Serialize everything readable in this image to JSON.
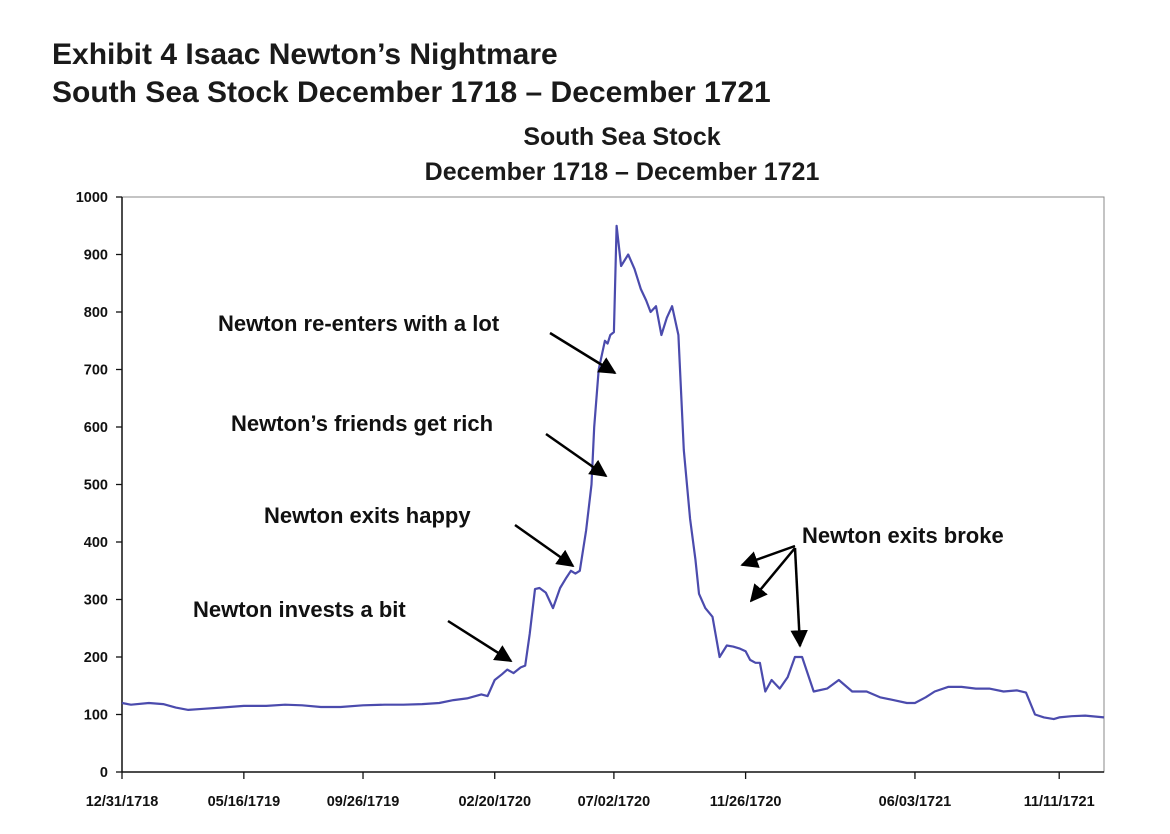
{
  "exhibit": {
    "title_line1": "Exhibit 4  Isaac Newton’s Nightmare",
    "title_line2": "South Sea Stock December 1718 – December 1721"
  },
  "chart_data": {
    "type": "line",
    "title_line1": "South Sea Stock",
    "title_line2": "December 1718 – December 1721",
    "xlabel": "",
    "ylabel": "",
    "ylim": [
      0,
      1000
    ],
    "yticks": [
      0,
      100,
      200,
      300,
      400,
      500,
      600,
      700,
      800,
      900,
      1000
    ],
    "xlim": [
      "1718-12-31",
      "1721-12-31"
    ],
    "xtick_labels": [
      "12/31/1718",
      "05/16/1719",
      "09/26/1719",
      "02/20/1720",
      "07/02/1720",
      "11/26/1720",
      "06/03/1721",
      "11/11/1721"
    ],
    "xtick_dates": [
      "1718-12-31",
      "1719-05-16",
      "1719-09-26",
      "1720-02-20",
      "1720-07-02",
      "1720-11-26",
      "1721-06-03",
      "1721-11-11"
    ],
    "grid": false,
    "legend": "none",
    "line_color": "#4b4bad",
    "series": [
      {
        "x": [
          "1718-12-31",
          "1719-01-10",
          "1719-01-30",
          "1719-02-15",
          "1719-03-01",
          "1719-03-15",
          "1719-04-01",
          "1719-04-20",
          "1719-05-16",
          "1719-06-10",
          "1719-07-01",
          "1719-07-20",
          "1719-08-10",
          "1719-09-01",
          "1719-09-26",
          "1719-10-20",
          "1719-11-10",
          "1719-12-01",
          "1719-12-20",
          "1720-01-05",
          "1720-01-20",
          "1720-02-05",
          "1720-02-12",
          "1720-02-20",
          "1720-02-28",
          "1720-03-05",
          "1720-03-12",
          "1720-03-20",
          "1720-03-25",
          "1720-03-30",
          "1720-04-05",
          "1720-04-10",
          "1720-04-17",
          "1720-04-25",
          "1720-05-03",
          "1720-05-10",
          "1720-05-15",
          "1720-05-20",
          "1720-05-25",
          "1720-06-01",
          "1720-06-07",
          "1720-06-10",
          "1720-06-15",
          "1720-06-22",
          "1720-06-25",
          "1720-06-28",
          "1720-07-02",
          "1720-07-05",
          "1720-07-10",
          "1720-07-18",
          "1720-07-25",
          "1720-08-01",
          "1720-08-07",
          "1720-08-12",
          "1720-08-18",
          "1720-08-24",
          "1720-08-30",
          "1720-09-05",
          "1720-09-12",
          "1720-09-18",
          "1720-09-25",
          "1720-10-01",
          "1720-10-05",
          "1720-10-12",
          "1720-10-20",
          "1720-10-28",
          "1720-11-05",
          "1720-11-12",
          "1720-11-19",
          "1720-11-26",
          "1720-12-01",
          "1720-12-07",
          "1720-12-12",
          "1720-12-18",
          "1720-12-25",
          "1721-01-03",
          "1721-01-12",
          "1721-01-20",
          "1721-01-28",
          "1721-02-10",
          "1721-02-25",
          "1721-03-10",
          "1721-03-25",
          "1721-04-10",
          "1721-04-25",
          "1721-05-10",
          "1721-05-25",
          "1721-06-03",
          "1721-06-15",
          "1721-06-25",
          "1721-07-10",
          "1721-07-25",
          "1721-08-10",
          "1721-08-25",
          "1721-09-10",
          "1721-09-25",
          "1721-10-05",
          "1721-10-15",
          "1721-10-25",
          "1721-11-05",
          "1721-11-11",
          "1721-11-25",
          "1721-12-10",
          "1721-12-31"
        ],
        "y": [
          120,
          117,
          120,
          118,
          112,
          108,
          110,
          112,
          115,
          115,
          117,
          116,
          113,
          113,
          116,
          117,
          117,
          118,
          120,
          125,
          128,
          135,
          132,
          160,
          170,
          178,
          172,
          182,
          185,
          240,
          318,
          320,
          312,
          285,
          320,
          338,
          350,
          345,
          350,
          420,
          500,
          600,
          700,
          750,
          745,
          760,
          765,
          950,
          880,
          900,
          875,
          840,
          820,
          800,
          810,
          760,
          790,
          810,
          760,
          560,
          440,
          370,
          310,
          285,
          270,
          200,
          220,
          218,
          215,
          210,
          195,
          190,
          190,
          140,
          160,
          145,
          165,
          200,
          200,
          140,
          145,
          160,
          140,
          140,
          130,
          125,
          120,
          120,
          130,
          140,
          148,
          148,
          145,
          145,
          140,
          142,
          138,
          100,
          95,
          92,
          95,
          97,
          98,
          95
        ]
      }
    ],
    "annotations": [
      {
        "text": "Newton re-enters with a lot"
      },
      {
        "text": "Newton’s friends get rich"
      },
      {
        "text": "Newton exits happy"
      },
      {
        "text": "Newton invests a bit"
      },
      {
        "text": "Newton exits broke"
      }
    ]
  }
}
